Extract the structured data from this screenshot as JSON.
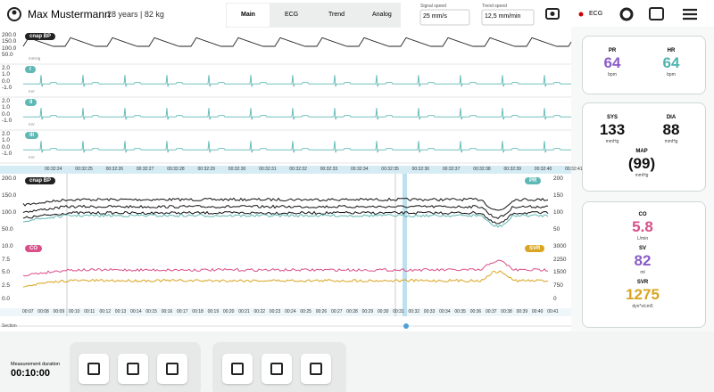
{
  "header": {
    "patient_name": "Max Mustermann",
    "patient_info": "28 years | 82 kg",
    "tabs": [
      "Main",
      "ECG",
      "Trend",
      "Analog"
    ],
    "signal_speed": {
      "label": "Signal speed",
      "value": "25 mm/s"
    },
    "trend_speed": {
      "label": "Trend speed",
      "value": "12,5 mm/min"
    },
    "ecg_indicator": "ECG"
  },
  "waveforms": [
    {
      "badge": "cnap BP",
      "unit": "mmHg",
      "ticks": [
        "200.0",
        "150.0",
        "100.0",
        "50.0"
      ],
      "color": "#222222"
    },
    {
      "badge": "I",
      "unit": "mV",
      "ticks": [
        "2.0",
        "1.0",
        "0.0",
        "-1.0"
      ],
      "color": "#5fb8b4"
    },
    {
      "badge": "II",
      "unit": "mV",
      "ticks": [
        "2.0",
        "1.0",
        "0.0",
        "-1.0"
      ],
      "color": "#5fb8b4"
    },
    {
      "badge": "III",
      "unit": "mV",
      "ticks": [
        "2.0",
        "1.0",
        "0.0",
        "-1.0"
      ],
      "color": "#5fb8b4"
    }
  ],
  "waveform_times": [
    "00:32:24",
    "00:32:25",
    "00:32:26",
    "00:32:27",
    "00:32:28",
    "00:32:29",
    "00:32:30",
    "00:32:31",
    "00:32:32",
    "00:32:33",
    "00:32:34",
    "00:32:35",
    "00:32:36",
    "00:32:37",
    "00:32:38",
    "00:32:39",
    "00:32:40",
    "00:32:41"
  ],
  "trends": [
    {
      "badge": "cnap BP",
      "badge_right": "PR",
      "left_ticks": [
        "200.0",
        "150.0",
        "100.0",
        "50.0"
      ],
      "right_ticks": [
        "200",
        "150",
        "100",
        "50"
      ]
    },
    {
      "badge": "CO",
      "badge_right": "SVR",
      "left_ticks": [
        "10.0",
        "7.5",
        "5.0",
        "2.5",
        "0.0"
      ],
      "right_ticks": [
        "3000",
        "2250",
        "1500",
        "750",
        "0"
      ]
    }
  ],
  "trend_times": [
    "00:07",
    "00:08",
    "00:09",
    "00:10",
    "00:11",
    "00:12",
    "00:13",
    "00:14",
    "00:15",
    "00:16",
    "00:17",
    "00:18",
    "00:19",
    "00:20",
    "00:21",
    "00:22",
    "00:23",
    "00:24",
    "00:25",
    "00:26",
    "00:27",
    "00:28",
    "00:29",
    "00:30",
    "00:31",
    "00:32",
    "00:33",
    "00:34",
    "00:35",
    "00:36",
    "00:37",
    "00:38",
    "00:39",
    "00:40",
    "00:41"
  ],
  "section_label": "Section",
  "vitals": [
    [
      {
        "label": "PR",
        "value": "64",
        "unit": "bpm",
        "color": "#8a5cc7"
      },
      {
        "label": "HR",
        "value": "64",
        "unit": "bpm",
        "color": "#4fb3b0"
      }
    ],
    [
      {
        "label": "SYS",
        "value": "133",
        "unit": "mmHg",
        "color": "#111111"
      },
      {
        "label": "DIA",
        "value": "88",
        "unit": "mmHg",
        "color": "#111111"
      },
      {
        "label": "MAP",
        "value": "(99)",
        "unit": "mmHg",
        "color": "#111111"
      }
    ],
    [
      {
        "label": "CO",
        "value": "5.8",
        "unit": "L/min",
        "color": "#d94f8a"
      },
      {
        "label": "SV",
        "value": "82",
        "unit": "ml",
        "color": "#8a5cc7"
      },
      {
        "label": "SVR",
        "value": "1275",
        "unit": "dyn*s/cm5",
        "color": "#d9a520"
      }
    ]
  ],
  "footer": {
    "duration_label": "Measurement duration",
    "duration": "00:10:00"
  }
}
